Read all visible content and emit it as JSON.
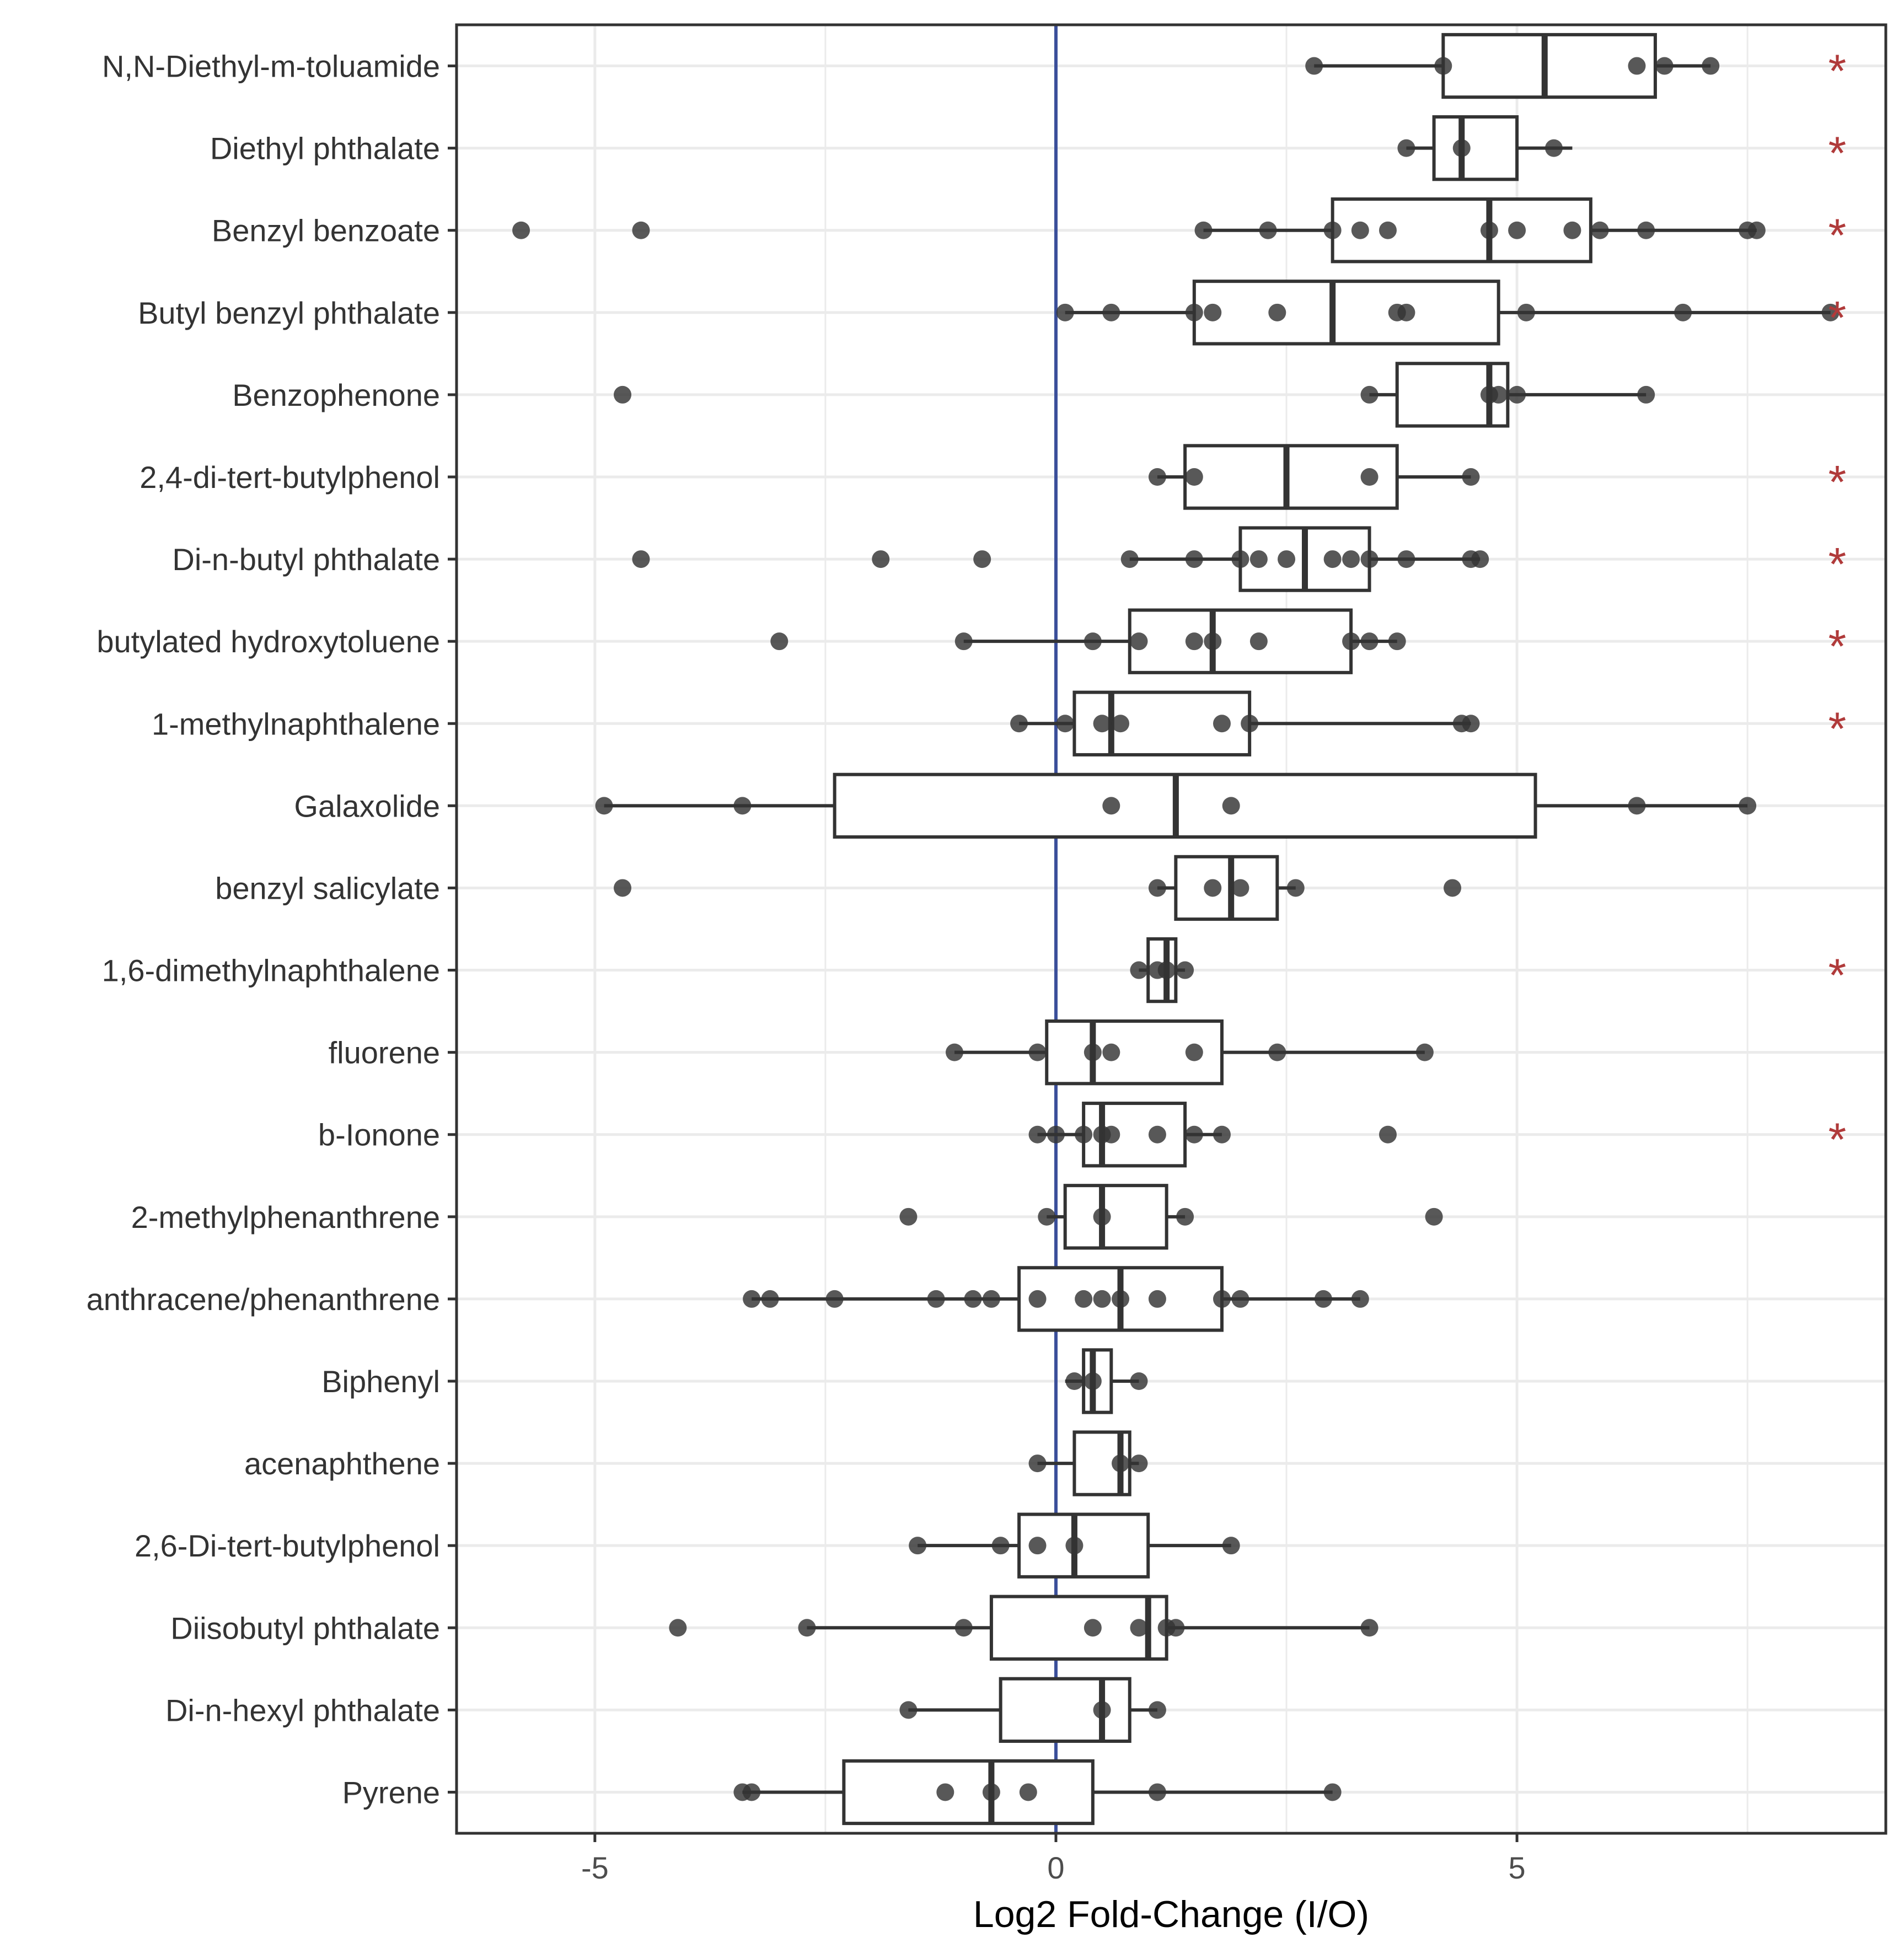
{
  "chart_data": {
    "type": "boxplot",
    "orientation": "horizontal",
    "xlabel": "Log2 Fold-Change (I/O)",
    "xlim": [
      -6.5,
      9.0
    ],
    "xticks": [
      -5,
      0,
      5
    ],
    "xtick_labels": [
      "-5",
      "0",
      "5"
    ],
    "reference_line": 0,
    "colors": {
      "reference_line": "#3b4f9a",
      "star": "#b03a3a",
      "box": "#333333",
      "point": "#333333",
      "grid": "#ebebeb",
      "panel_border": "#333333"
    },
    "significance_marker": "*",
    "series": [
      {
        "name": "N,N-Diethyl-m-toluamide",
        "box": {
          "whisker_low": 2.8,
          "q1": 4.2,
          "median": 5.3,
          "q3": 6.5,
          "whisker_high": 7.1
        },
        "points": [
          2.8,
          4.2,
          6.3,
          6.6,
          7.1
        ],
        "significant": true
      },
      {
        "name": "Diethyl phthalate",
        "box": {
          "whisker_low": 3.8,
          "q1": 4.1,
          "median": 4.4,
          "q3": 5.0,
          "whisker_high": 5.6
        },
        "points": [
          3.8,
          4.4,
          5.4
        ],
        "significant": true
      },
      {
        "name": "Benzyl benzoate",
        "box": {
          "whisker_low": 1.6,
          "q1": 3.0,
          "median": 4.7,
          "q3": 5.8,
          "whisker_high": 7.6
        },
        "points": [
          -5.8,
          -4.5,
          1.6,
          2.3,
          3.0,
          3.3,
          3.6,
          4.7,
          5.0,
          5.6,
          5.9,
          6.4,
          7.5,
          7.6
        ],
        "significant": true
      },
      {
        "name": "Butyl benzyl phthalate",
        "box": {
          "whisker_low": 0.1,
          "q1": 1.5,
          "median": 3.0,
          "q3": 4.8,
          "whisker_high": 8.4
        },
        "points": [
          0.1,
          0.6,
          1.5,
          1.7,
          2.4,
          3.7,
          3.8,
          5.1,
          6.8,
          8.4
        ],
        "significant": true
      },
      {
        "name": "Benzophenone",
        "box": {
          "whisker_low": 3.4,
          "q1": 3.7,
          "median": 4.7,
          "q3": 4.9,
          "whisker_high": 6.4
        },
        "points": [
          -4.7,
          3.4,
          4.7,
          4.8,
          5.0,
          6.4
        ],
        "significant": false
      },
      {
        "name": "2,4-di-tert-butylphenol",
        "box": {
          "whisker_low": 1.1,
          "q1": 1.4,
          "median": 2.5,
          "q3": 3.7,
          "whisker_high": 4.5
        },
        "points": [
          1.1,
          1.5,
          3.4,
          4.5
        ],
        "significant": true
      },
      {
        "name": "Di-n-butyl phthalate",
        "box": {
          "whisker_low": 0.8,
          "q1": 2.0,
          "median": 2.7,
          "q3": 3.4,
          "whisker_high": 4.6
        },
        "points": [
          -4.5,
          -1.9,
          -0.8,
          0.8,
          1.5,
          2.0,
          2.2,
          2.5,
          3.0,
          3.2,
          3.4,
          3.8,
          4.5,
          4.6
        ],
        "significant": true
      },
      {
        "name": "butylated hydroxytoluene",
        "box": {
          "whisker_low": -1.0,
          "q1": 0.8,
          "median": 1.7,
          "q3": 3.2,
          "whisker_high": 3.7
        },
        "points": [
          -3.0,
          -1.0,
          0.4,
          0.9,
          1.5,
          1.7,
          2.2,
          3.2,
          3.4,
          3.7
        ],
        "significant": true
      },
      {
        "name": "1-methylnaphthalene",
        "box": {
          "whisker_low": -0.4,
          "q1": 0.2,
          "median": 0.6,
          "q3": 2.1,
          "whisker_high": 4.5
        },
        "points": [
          -0.4,
          0.1,
          0.5,
          0.7,
          1.8,
          2.1,
          4.4,
          4.5
        ],
        "significant": true
      },
      {
        "name": "Galaxolide",
        "box": {
          "whisker_low": -4.9,
          "q1": -2.4,
          "median": 1.3,
          "q3": 5.2,
          "whisker_high": 7.5
        },
        "points": [
          -4.9,
          -3.4,
          0.6,
          1.9,
          6.3,
          7.5
        ],
        "significant": false
      },
      {
        "name": "benzyl salicylate",
        "box": {
          "whisker_low": 1.1,
          "q1": 1.3,
          "median": 1.9,
          "q3": 2.4,
          "whisker_high": 2.6
        },
        "points": [
          -4.7,
          1.1,
          1.7,
          2.0,
          2.6,
          4.3
        ],
        "significant": false
      },
      {
        "name": "1,6-dimethylnaphthalene",
        "box": {
          "whisker_low": 0.9,
          "q1": 1.0,
          "median": 1.2,
          "q3": 1.3,
          "whisker_high": 1.4
        },
        "points": [
          0.9,
          1.1,
          1.2,
          1.4
        ],
        "significant": true
      },
      {
        "name": "fluorene",
        "box": {
          "whisker_low": -1.1,
          "q1": -0.1,
          "median": 0.4,
          "q3": 1.8,
          "whisker_high": 4.0
        },
        "points": [
          -1.1,
          -0.2,
          0.4,
          0.6,
          1.5,
          2.4,
          4.0
        ],
        "significant": false
      },
      {
        "name": "b-Ionone",
        "box": {
          "whisker_low": -0.2,
          "q1": 0.3,
          "median": 0.5,
          "q3": 1.4,
          "whisker_high": 1.8
        },
        "points": [
          -0.2,
          0.0,
          0.3,
          0.5,
          0.6,
          1.1,
          1.5,
          1.8,
          3.6
        ],
        "significant": true
      },
      {
        "name": "2-methylphenanthrene",
        "box": {
          "whisker_low": -0.1,
          "q1": 0.1,
          "median": 0.5,
          "q3": 1.2,
          "whisker_high": 1.4
        },
        "points": [
          -1.6,
          -0.1,
          0.5,
          1.4,
          4.1
        ],
        "significant": false
      },
      {
        "name": "anthracene/phenanthrene",
        "box": {
          "whisker_low": -3.3,
          "q1": -0.4,
          "median": 0.7,
          "q3": 1.8,
          "whisker_high": 3.3
        },
        "points": [
          -3.3,
          -3.1,
          -2.4,
          -1.3,
          -0.9,
          -0.7,
          -0.2,
          0.3,
          0.5,
          0.7,
          1.1,
          1.8,
          2.0,
          2.9,
          3.3
        ],
        "significant": false
      },
      {
        "name": "Biphenyl",
        "box": {
          "whisker_low": 0.1,
          "q1": 0.3,
          "median": 0.4,
          "q3": 0.6,
          "whisker_high": 0.9
        },
        "points": [
          0.2,
          0.4,
          0.9
        ],
        "significant": false
      },
      {
        "name": "acenaphthene",
        "box": {
          "whisker_low": -0.2,
          "q1": 0.2,
          "median": 0.7,
          "q3": 0.8,
          "whisker_high": 0.9
        },
        "points": [
          -0.2,
          0.7,
          0.9
        ],
        "significant": false
      },
      {
        "name": "2,6-Di-tert-butylphenol",
        "box": {
          "whisker_low": -1.5,
          "q1": -0.4,
          "median": 0.2,
          "q3": 1.0,
          "whisker_high": 1.9
        },
        "points": [
          -1.5,
          -0.6,
          -0.2,
          0.2,
          1.9
        ],
        "significant": false
      },
      {
        "name": "Diisobutyl phthalate",
        "box": {
          "whisker_low": -2.7,
          "q1": -0.7,
          "median": 1.0,
          "q3": 1.2,
          "whisker_high": 3.4
        },
        "points": [
          -4.1,
          -2.7,
          -1.0,
          0.4,
          0.9,
          1.2,
          1.3,
          3.4
        ],
        "significant": false
      },
      {
        "name": "Di-n-hexyl phthalate",
        "box": {
          "whisker_low": -1.6,
          "q1": -0.6,
          "median": 0.5,
          "q3": 0.8,
          "whisker_high": 1.1
        },
        "points": [
          -1.6,
          0.5,
          1.1
        ],
        "significant": false
      },
      {
        "name": "Pyrene",
        "box": {
          "whisker_low": -3.4,
          "q1": -2.3,
          "median": -0.7,
          "q3": 0.4,
          "whisker_high": 3.0
        },
        "points": [
          -3.4,
          -3.3,
          -1.2,
          -0.7,
          -0.3,
          1.1,
          3.0
        ],
        "significant": false
      }
    ]
  }
}
